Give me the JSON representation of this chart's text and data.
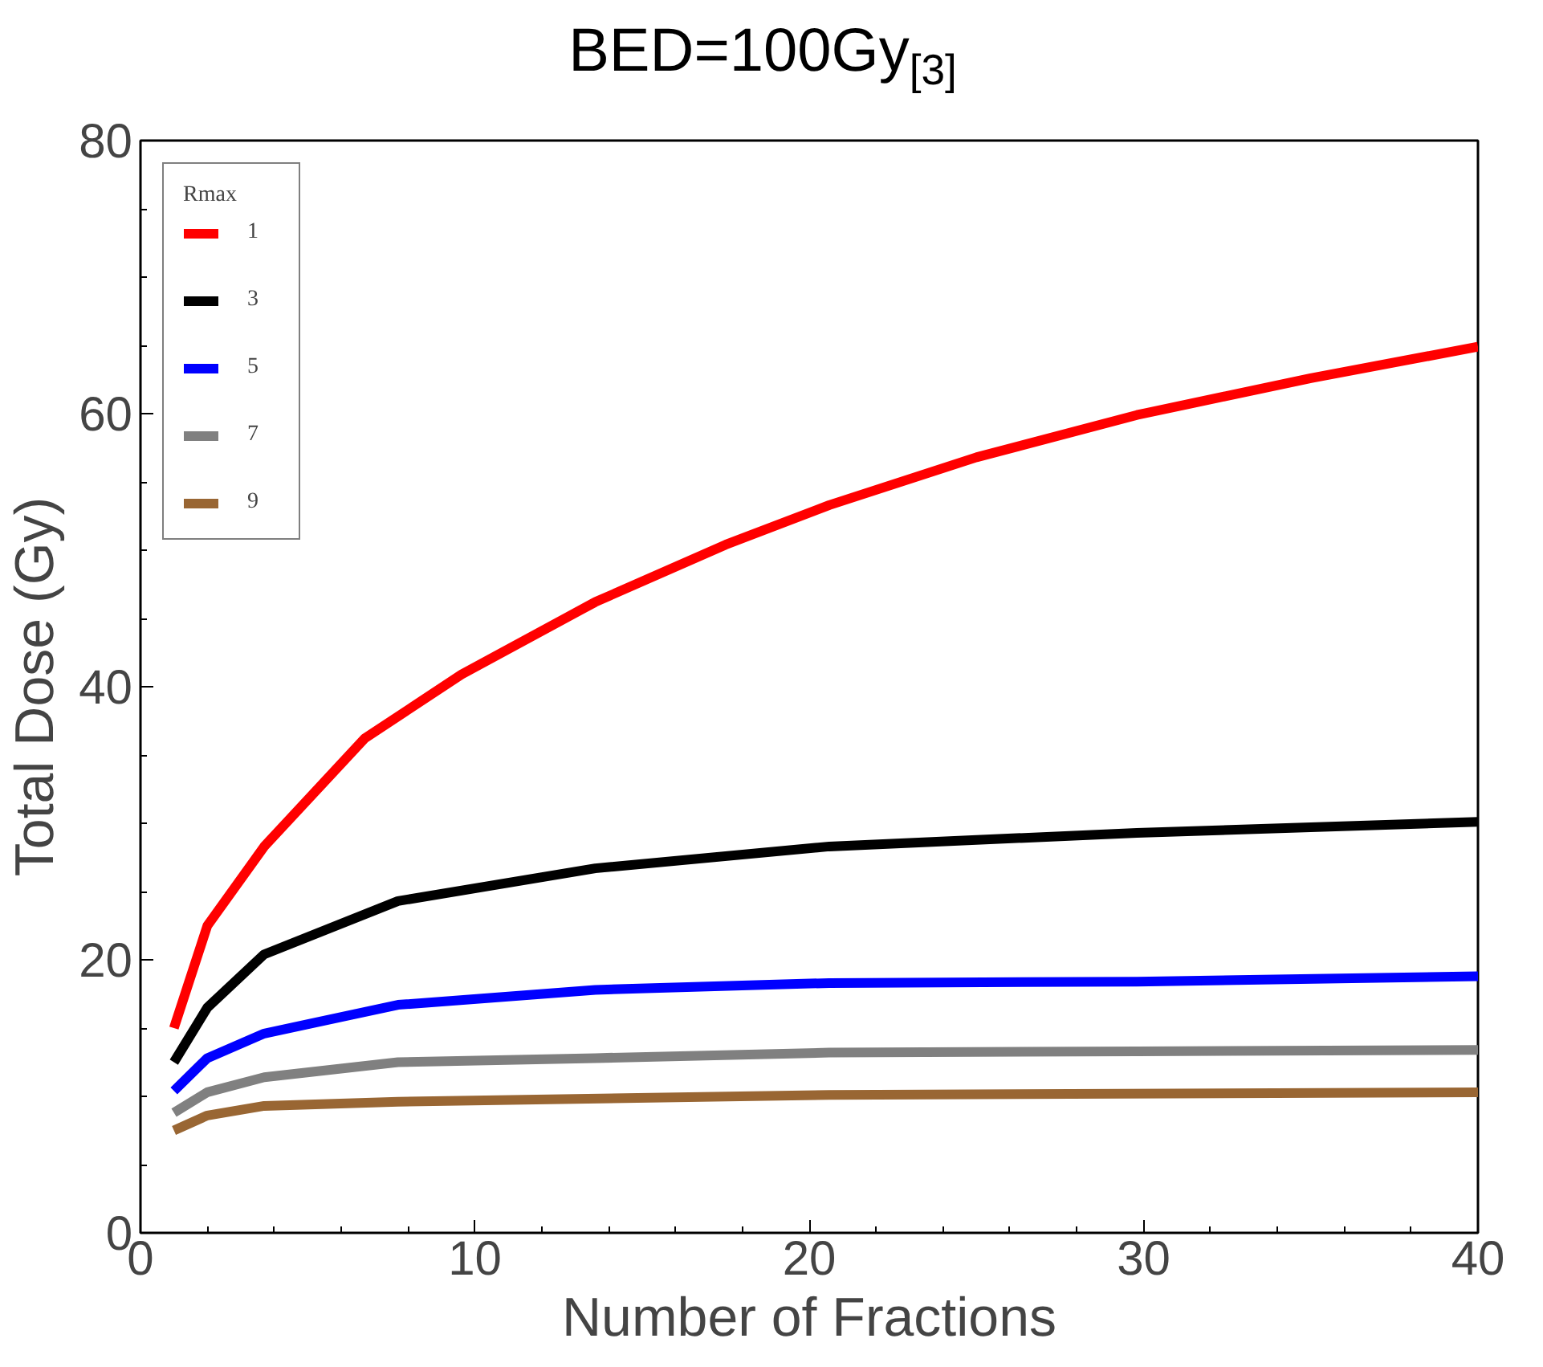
{
  "chart_data": {
    "type": "line",
    "title": "BED=100Gy$_{[3]}$",
    "xlabel": "Number of Fractions",
    "ylabel": "Total Dose (Gy)",
    "legend_title": "Rmax",
    "legend": "top left",
    "grid": false,
    "xlim": [
      0,
      40
    ],
    "ylim": [
      0,
      80
    ],
    "xticks": [
      0,
      10,
      20,
      30,
      40
    ],
    "yticks": [
      0,
      20,
      40,
      60,
      80
    ],
    "series": [
      {
        "name": "1",
        "color": "#ff0000",
        "x": [
          1,
          2,
          3.7,
          6.7,
          9.6,
          13.6,
          17.5,
          20.6,
          25,
          29.8,
          35,
          40
        ],
        "values": [
          15,
          22.5,
          28.3,
          36.2,
          40.9,
          46.2,
          50.4,
          53.3,
          56.8,
          59.9,
          62.6,
          64.9
        ]
      },
      {
        "name": "3",
        "color": "#000000",
        "x": [
          1,
          2,
          3.7,
          7.7,
          13.6,
          20.6,
          29.8,
          40
        ],
        "values": [
          12.5,
          16.5,
          20.4,
          24.3,
          26.7,
          28.3,
          29.3,
          30.1
        ]
      },
      {
        "name": "5",
        "color": "#0000ff",
        "x": [
          1,
          2,
          3.7,
          7.7,
          13.6,
          20.6,
          29.8,
          40
        ],
        "values": [
          10.4,
          12.8,
          14.6,
          16.7,
          17.8,
          18.3,
          18.4,
          18.8
        ]
      },
      {
        "name": "7",
        "color": "#808080",
        "x": [
          1,
          2,
          3.7,
          7.7,
          13.6,
          20.6,
          29.8,
          40
        ],
        "values": [
          8.8,
          10.3,
          11.4,
          12.5,
          12.8,
          13.2,
          13.3,
          13.4
        ]
      },
      {
        "name": "9",
        "color": "#996633",
        "x": [
          1,
          2,
          3.7,
          7.7,
          20.6,
          40
        ],
        "values": [
          7.5,
          8.6,
          9.3,
          9.6,
          10.1,
          10.3
        ]
      }
    ]
  }
}
